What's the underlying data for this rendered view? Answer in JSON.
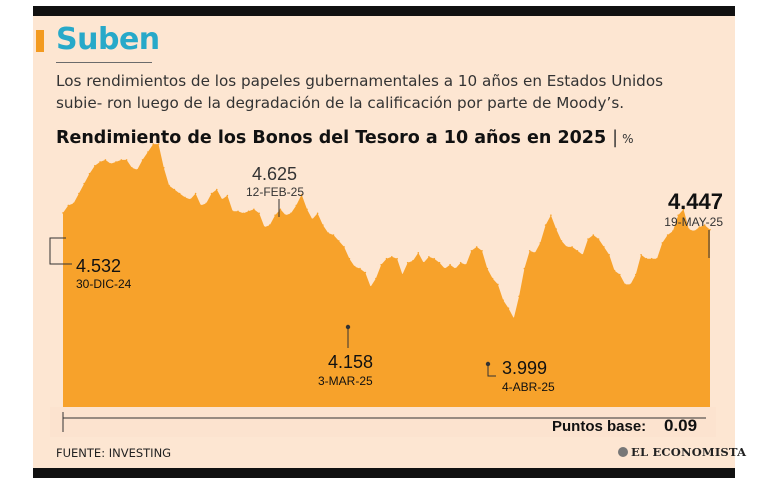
{
  "headline": "Suben",
  "deck": "Los rendimientos de los papeles gubernamentales a 10 años en Estados Unidos subie- ron luego de la degradación de la calificación por parte de Moody’s.",
  "chart_title": "Rendimiento de los Bonos del Tesoro a 10 años en 2025",
  "chart_unit": "%",
  "footer_source": "FUENTE: INVESTING",
  "logo_text": "EL ECONOMISTA",
  "basis_points_label": "Puntos base:",
  "basis_points_value": "0.09",
  "annotations": {
    "start": {
      "value": "4.532",
      "date": "30-DIC-24"
    },
    "feb": {
      "value": "4.625",
      "date": "12-FEB-25"
    },
    "mar": {
      "value": "4.158",
      "date": "3-MAR-25"
    },
    "apr": {
      "value": "3.999",
      "date": "4-ABR-25"
    },
    "end": {
      "value": "4.447",
      "date": "19-MAY-25"
    }
  },
  "colors": {
    "area": "#f7a22b",
    "accent": "#f39a1f",
    "headline": "#27a9c9",
    "background": "#fde6d2"
  },
  "chart_data": {
    "type": "area",
    "title": "Rendimiento de los Bonos del Tesoro a 10 años en 2025",
    "unit": "%",
    "xlabel": "",
    "ylabel": "",
    "ylim": [
      3.55,
      4.85
    ],
    "grid": false,
    "legend": "none",
    "start_date": "30-DIC-24",
    "end_date": "19-MAY-25",
    "series": [
      {
        "values": [
          4.532,
          4.57,
          4.58,
          4.63,
          4.68,
          4.73,
          4.77,
          4.79,
          4.8,
          4.78,
          4.79,
          4.8,
          4.8,
          4.76,
          4.75,
          4.8,
          4.84,
          4.88,
          4.88,
          4.76,
          4.67,
          4.65,
          4.63,
          4.61,
          4.6,
          4.63,
          4.57,
          4.58,
          4.63,
          4.65,
          4.6,
          4.62,
          4.54,
          4.54,
          4.53,
          4.54,
          4.55,
          4.53,
          4.46,
          4.47,
          4.52,
          4.55,
          4.52,
          4.53,
          4.57,
          4.625,
          4.55,
          4.5,
          4.53,
          4.47,
          4.43,
          4.42,
          4.39,
          4.36,
          4.3,
          4.26,
          4.25,
          4.23,
          4.158,
          4.2,
          4.27,
          4.3,
          4.31,
          4.3,
          4.22,
          4.28,
          4.29,
          4.33,
          4.28,
          4.31,
          4.3,
          4.28,
          4.25,
          4.27,
          4.25,
          4.28,
          4.27,
          4.34,
          4.36,
          4.34,
          4.25,
          4.2,
          4.17,
          4.09,
          4.05,
          3.999,
          4.11,
          4.25,
          4.34,
          4.33,
          4.38,
          4.47,
          4.52,
          4.45,
          4.39,
          4.36,
          4.36,
          4.34,
          4.32,
          4.4,
          4.42,
          4.4,
          4.36,
          4.32,
          4.24,
          4.22,
          4.17,
          4.17,
          4.22,
          4.32,
          4.3,
          4.3,
          4.3,
          4.38,
          4.42,
          4.44,
          4.52,
          4.55,
          4.45,
          4.44,
          4.46,
          4.47,
          4.447
        ]
      }
    ]
  }
}
